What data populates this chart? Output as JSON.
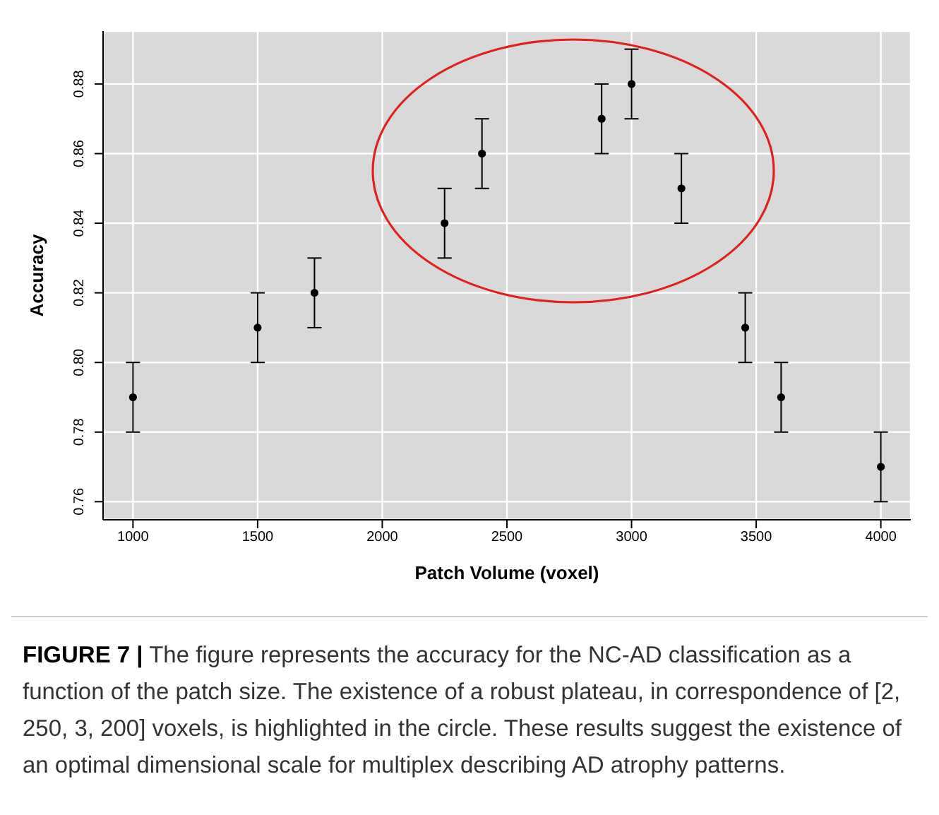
{
  "chart_data": {
    "type": "scatter",
    "xlabel": "Patch Volume (voxel)",
    "ylabel": "Accuracy",
    "x": [
      1000,
      1500,
      1728,
      2250,
      2400,
      2880,
      3000,
      3200,
      3456,
      3600,
      4000
    ],
    "values": [
      0.79,
      0.81,
      0.82,
      0.84,
      0.86,
      0.87,
      0.88,
      0.85,
      0.81,
      0.79,
      0.77
    ],
    "errors": [
      0.01,
      0.01,
      0.01,
      0.01,
      0.01,
      0.01,
      0.01,
      0.01,
      0.01,
      0.01,
      0.01
    ],
    "color": "#000000",
    "marker": "circle",
    "grid": true,
    "xlim": [
      880,
      4120
    ],
    "xticks": [
      1000,
      1500,
      2000,
      2500,
      3000,
      3500,
      4000
    ],
    "ylim": [
      0.7548,
      0.8952
    ],
    "yticks": [
      0.76,
      0.78,
      {
        "value": 0.8,
        "label": "0.80"
      },
      0.82,
      0.84,
      0.86,
      0.88
    ],
    "annotations": [
      "FIGURE 7 |",
      "The figure represents the accuracy for the NC-AD classification as a function of the patch size. The existence of a robust plateau, in correspondence of [2, 250, 3, 200] voxels, is highlighted in the circle. These results suggest the existence of an optimal dimensional scale for multiplex describing AD atrophy patterns."
    ]
  }
}
